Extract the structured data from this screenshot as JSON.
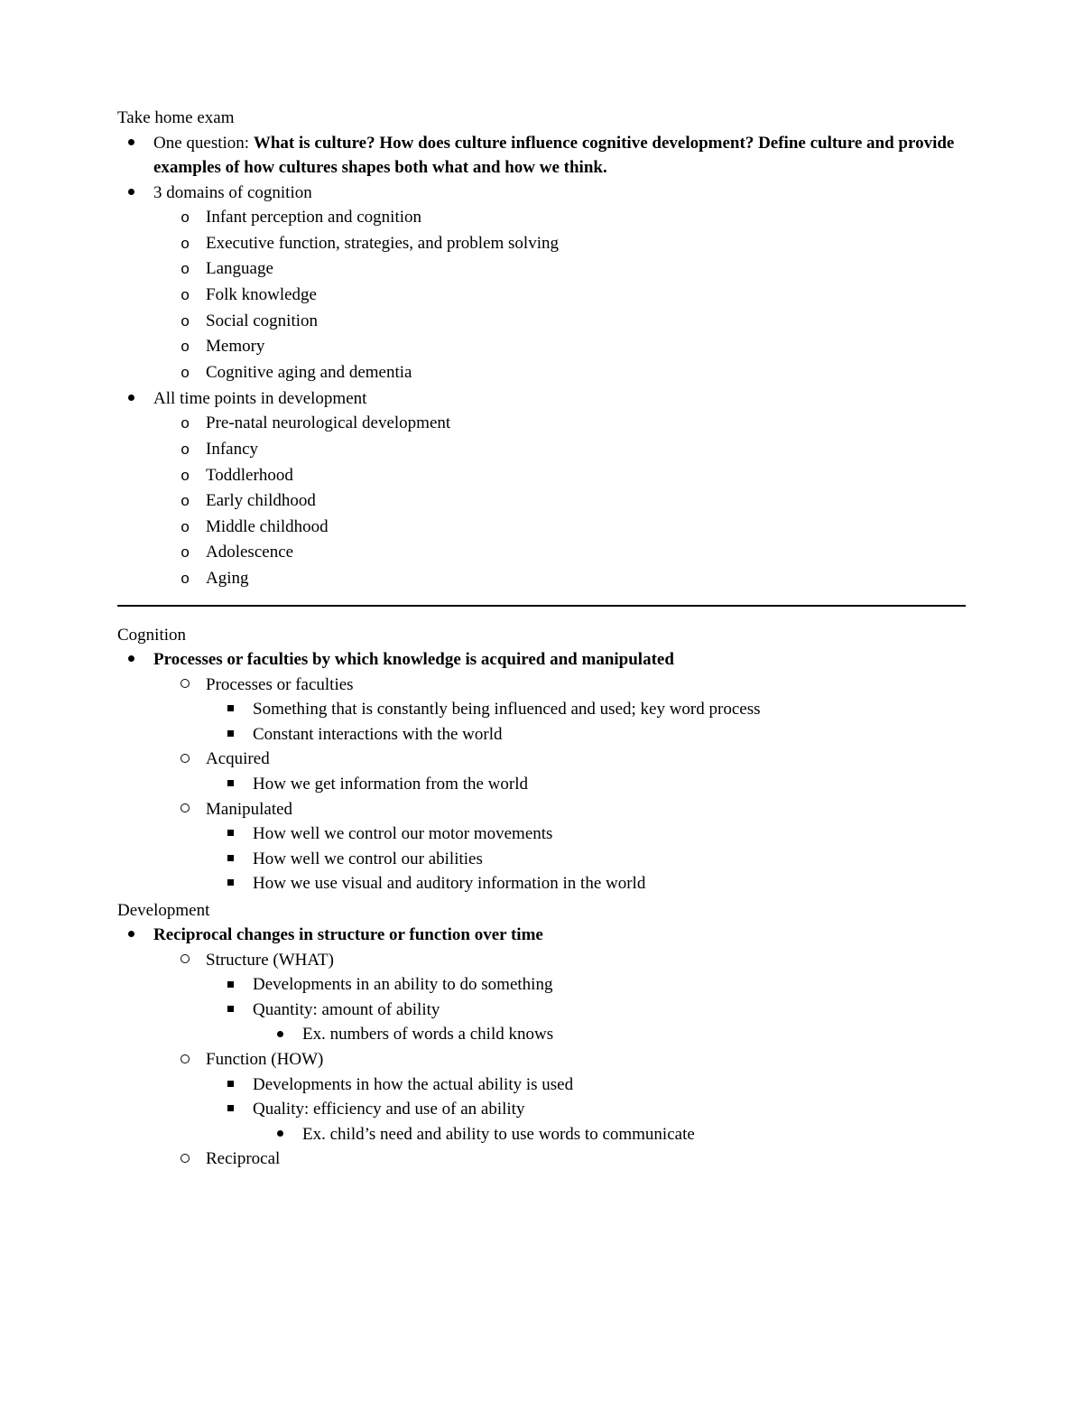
{
  "section1": {
    "title": "Take home exam",
    "q_prefix": "One question: ",
    "q_bold": "What is culture? How does culture influence cognitive development? Define culture and provide examples of how cultures shapes both what and how we think.",
    "domains_label": "3 domains of cognition",
    "domains": [
      "Infant perception and cognition",
      "Executive function, strategies, and problem solving",
      "Language",
      "Folk knowledge",
      "Social cognition",
      "Memory",
      "Cognitive aging and dementia"
    ],
    "timepoints_label": "All time points in development",
    "timepoints": [
      "Pre-natal neurological development",
      "Infancy",
      "Toddlerhood",
      "Early childhood",
      "Middle childhood",
      "Adolescence",
      "Aging"
    ]
  },
  "section2": {
    "cognition_title": "Cognition",
    "cognition_def": "Processes or faculties by which knowledge is acquired and manipulated",
    "cog_a_label": "Processes or faculties",
    "cog_a_items": [
      "Something that is constantly being influenced and used; key word process",
      "Constant interactions with the world"
    ],
    "cog_b_label": "Acquired",
    "cog_b_items": [
      "How we get information from the world"
    ],
    "cog_c_label": "Manipulated",
    "cog_c_items": [
      "How well we control our motor movements",
      "How well we control our abilities",
      "How we use visual and auditory information in the world"
    ],
    "development_title": "Development",
    "development_def": "Reciprocal changes in structure or function over time",
    "dev_a_label": "Structure (WHAT)",
    "dev_a_items": [
      "Developments in an ability to do something",
      "Quantity: amount of ability"
    ],
    "dev_a_ex": "Ex. numbers of words a child knows",
    "dev_b_label": "Function (HOW)",
    "dev_b_items": [
      "Developments in how the actual ability is used",
      "Quality: efficiency and use of an ability"
    ],
    "dev_b_ex": "Ex. child’s need and ability to use words to communicate",
    "dev_c_label": "Reciprocal"
  }
}
